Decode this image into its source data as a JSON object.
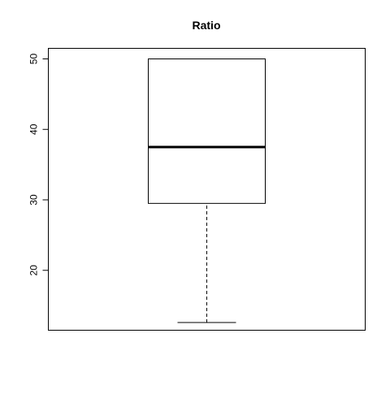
{
  "chart_data": {
    "type": "boxplot",
    "title": "Ratio",
    "xlabel": "",
    "ylabel": "",
    "ylim": [
      11.5,
      51.5
    ],
    "yticks": [
      20,
      30,
      40,
      50
    ],
    "ytick_labels": [
      "20",
      "30",
      "40",
      "50"
    ],
    "grid": false,
    "box": {
      "min": 12.6,
      "q1": 29.5,
      "median": 37.5,
      "q3": 50,
      "max": 50
    },
    "colors": {
      "box_fill": "#ffffff",
      "stroke": "#000000"
    }
  }
}
